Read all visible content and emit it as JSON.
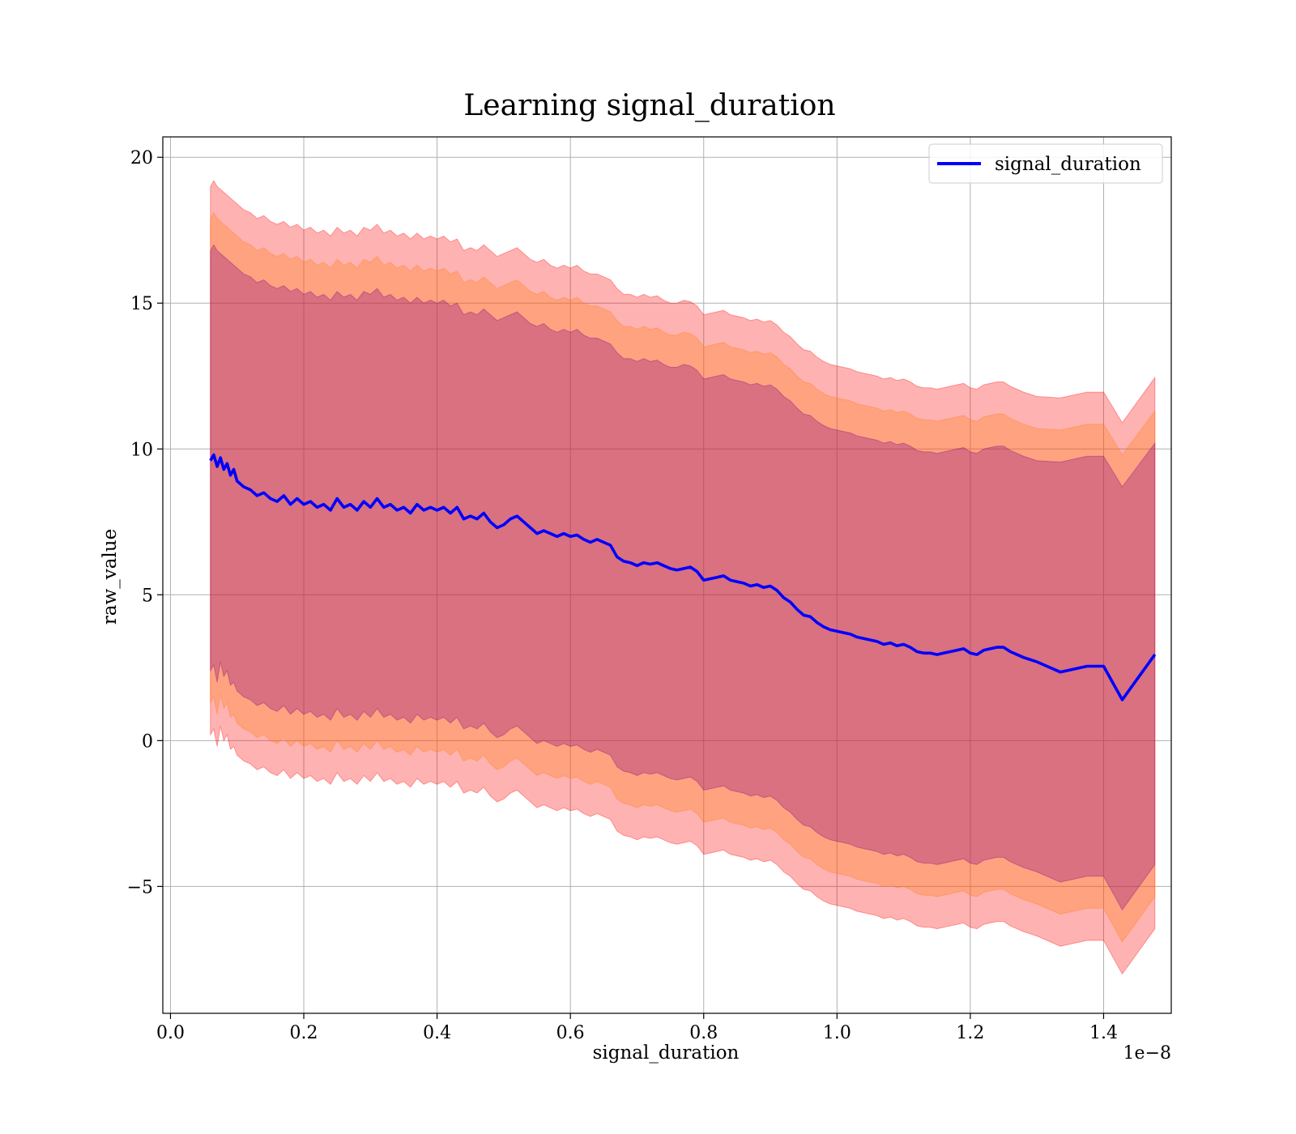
{
  "chart_data": {
    "type": "line",
    "title": "Learning signal_duration",
    "xlabel": "signal_duration",
    "ylabel": "raw_value",
    "x_offset_label": "1e−8",
    "xlim": [
      -0.0115,
      1.5015
    ],
    "ylim": [
      -9.35,
      20.7
    ],
    "x_ticks": [
      0.0,
      0.2,
      0.4,
      0.6,
      0.8,
      1.0,
      1.2,
      1.4
    ],
    "x_tick_labels": [
      "0.0",
      "0.2",
      "0.4",
      "0.6",
      "0.8",
      "1.0",
      "1.2",
      "1.4"
    ],
    "y_ticks": [
      -5,
      0,
      5,
      10,
      15,
      20
    ],
    "y_tick_labels": [
      "−5",
      "0",
      "5",
      "10",
      "15",
      "20"
    ],
    "grid": true,
    "legend": {
      "position": "top-right",
      "entries": [
        "signal_duration"
      ]
    },
    "colors": {
      "line": "#0000ff",
      "band_outer": "#ff0000",
      "band_middle": "#ff7f0e",
      "band_inner": "#800080",
      "grid": "#b0b0b0"
    },
    "series": [
      {
        "name": "signal_duration",
        "x": [
          0.06,
          0.065,
          0.07,
          0.075,
          0.08,
          0.085,
          0.09,
          0.095,
          0.1,
          0.11,
          0.12,
          0.13,
          0.14,
          0.15,
          0.16,
          0.17,
          0.18,
          0.19,
          0.2,
          0.21,
          0.22,
          0.23,
          0.24,
          0.25,
          0.26,
          0.27,
          0.28,
          0.29,
          0.3,
          0.31,
          0.32,
          0.33,
          0.34,
          0.35,
          0.36,
          0.37,
          0.38,
          0.39,
          0.4,
          0.41,
          0.42,
          0.43,
          0.44,
          0.45,
          0.46,
          0.47,
          0.48,
          0.49,
          0.5,
          0.51,
          0.52,
          0.53,
          0.54,
          0.55,
          0.56,
          0.57,
          0.58,
          0.59,
          0.6,
          0.61,
          0.62,
          0.63,
          0.64,
          0.65,
          0.66,
          0.67,
          0.68,
          0.69,
          0.7,
          0.71,
          0.72,
          0.73,
          0.74,
          0.75,
          0.76,
          0.77,
          0.78,
          0.79,
          0.8,
          0.81,
          0.82,
          0.83,
          0.84,
          0.85,
          0.86,
          0.87,
          0.88,
          0.89,
          0.9,
          0.91,
          0.92,
          0.93,
          0.94,
          0.95,
          0.96,
          0.97,
          0.98,
          0.99,
          1.0,
          1.01,
          1.02,
          1.03,
          1.04,
          1.05,
          1.06,
          1.07,
          1.08,
          1.09,
          1.1,
          1.11,
          1.12,
          1.13,
          1.14,
          1.15,
          1.16,
          1.17,
          1.18,
          1.19,
          1.2,
          1.21,
          1.22,
          1.23,
          1.24,
          1.25,
          1.26,
          1.28,
          1.3,
          1.335,
          1.375,
          1.4,
          1.428,
          1.477
        ],
        "y": [
          9.6,
          9.8,
          9.4,
          9.7,
          9.3,
          9.5,
          9.1,
          9.3,
          8.9,
          8.7,
          8.6,
          8.4,
          8.5,
          8.3,
          8.2,
          8.4,
          8.1,
          8.3,
          8.1,
          8.2,
          8.0,
          8.1,
          7.9,
          8.3,
          8.0,
          8.1,
          7.9,
          8.2,
          8.0,
          8.3,
          8.0,
          8.1,
          7.9,
          8.0,
          7.8,
          8.1,
          7.9,
          8.0,
          7.9,
          8.0,
          7.8,
          8.0,
          7.6,
          7.7,
          7.6,
          7.8,
          7.5,
          7.3,
          7.4,
          7.6,
          7.7,
          7.5,
          7.3,
          7.1,
          7.2,
          7.1,
          7.0,
          7.1,
          7.0,
          7.05,
          6.9,
          6.8,
          6.9,
          6.8,
          6.7,
          6.3,
          6.15,
          6.1,
          6.0,
          6.1,
          6.05,
          6.1,
          6.0,
          5.9,
          5.85,
          5.9,
          5.95,
          5.8,
          5.5,
          5.55,
          5.6,
          5.65,
          5.5,
          5.45,
          5.4,
          5.3,
          5.35,
          5.25,
          5.3,
          5.15,
          4.9,
          4.75,
          4.5,
          4.3,
          4.25,
          4.05,
          3.9,
          3.8,
          3.75,
          3.7,
          3.65,
          3.55,
          3.5,
          3.45,
          3.4,
          3.3,
          3.35,
          3.25,
          3.3,
          3.2,
          3.05,
          3.0,
          3.0,
          2.95,
          3.0,
          3.05,
          3.1,
          3.15,
          3.0,
          2.95,
          3.1,
          3.15,
          3.2,
          3.2,
          3.05,
          2.85,
          2.7,
          2.35,
          2.55,
          2.55,
          1.4,
          2.95
        ],
        "band_outer_upper": [
          19.0,
          19.2,
          19.0,
          18.9,
          18.8,
          18.7,
          18.6,
          18.5,
          18.4,
          18.2,
          18.1,
          17.9,
          18.0,
          17.8,
          17.7,
          17.8,
          17.6,
          17.7,
          17.5,
          17.6,
          17.4,
          17.5,
          17.3,
          17.6,
          17.4,
          17.5,
          17.3,
          17.6,
          17.5,
          17.7,
          17.4,
          17.5,
          17.3,
          17.4,
          17.2,
          17.4,
          17.2,
          17.3,
          17.2,
          17.3,
          17.1,
          17.2,
          16.8,
          16.9,
          16.8,
          17.0,
          16.8,
          16.6,
          16.7,
          16.8,
          16.9,
          16.7,
          16.5,
          16.4,
          16.5,
          16.3,
          16.2,
          16.3,
          16.2,
          16.3,
          16.1,
          16.0,
          16.0,
          15.9,
          15.8,
          15.5,
          15.3,
          15.3,
          15.2,
          15.3,
          15.2,
          15.25,
          15.1,
          15.0,
          15.0,
          15.1,
          15.05,
          14.9,
          14.6,
          14.65,
          14.7,
          14.75,
          14.6,
          14.55,
          14.5,
          14.4,
          14.45,
          14.35,
          14.4,
          14.25,
          14.0,
          13.85,
          13.6,
          13.4,
          13.35,
          13.15,
          13.0,
          12.9,
          12.85,
          12.8,
          12.75,
          12.65,
          12.6,
          12.55,
          12.5,
          12.4,
          12.45,
          12.35,
          12.4,
          12.3,
          12.15,
          12.1,
          12.1,
          12.05,
          12.1,
          12.15,
          12.2,
          12.25,
          12.1,
          12.05,
          12.2,
          12.25,
          12.3,
          12.3,
          12.15,
          11.95,
          11.8,
          11.75,
          11.95,
          11.95,
          10.9,
          12.45
        ],
        "band_outer_lower": [
          0.2,
          0.4,
          -0.2,
          0.5,
          0.0,
          0.2,
          -0.3,
          -0.2,
          -0.5,
          -0.7,
          -0.8,
          -1.0,
          -0.9,
          -1.1,
          -1.2,
          -1.0,
          -1.3,
          -1.1,
          -1.3,
          -1.2,
          -1.4,
          -1.3,
          -1.5,
          -1.1,
          -1.4,
          -1.3,
          -1.5,
          -1.2,
          -1.4,
          -1.1,
          -1.4,
          -1.3,
          -1.5,
          -1.4,
          -1.6,
          -1.3,
          -1.5,
          -1.4,
          -1.5,
          -1.4,
          -1.6,
          -1.4,
          -1.8,
          -1.7,
          -1.8,
          -1.6,
          -1.9,
          -2.1,
          -2.0,
          -1.8,
          -1.7,
          -1.9,
          -2.1,
          -2.3,
          -2.2,
          -2.3,
          -2.4,
          -2.3,
          -2.4,
          -2.35,
          -2.5,
          -2.6,
          -2.5,
          -2.6,
          -2.7,
          -3.1,
          -3.25,
          -3.3,
          -3.4,
          -3.3,
          -3.35,
          -3.3,
          -3.4,
          -3.5,
          -3.55,
          -3.5,
          -3.45,
          -3.6,
          -3.9,
          -3.85,
          -3.8,
          -3.75,
          -3.9,
          -3.95,
          -4.0,
          -4.1,
          -4.05,
          -4.15,
          -4.1,
          -4.25,
          -4.5,
          -4.65,
          -4.9,
          -5.1,
          -5.15,
          -5.35,
          -5.5,
          -5.6,
          -5.65,
          -5.7,
          -5.75,
          -5.85,
          -5.9,
          -5.95,
          -6.0,
          -6.1,
          -6.05,
          -6.15,
          -6.1,
          -6.2,
          -6.35,
          -6.4,
          -6.4,
          -6.45,
          -6.4,
          -6.35,
          -6.3,
          -6.25,
          -6.4,
          -6.45,
          -6.3,
          -6.25,
          -6.2,
          -6.2,
          -6.35,
          -6.55,
          -6.7,
          -7.05,
          -6.85,
          -6.85,
          -8.0,
          -6.45
        ],
        "band_middle_upper": [
          17.9,
          18.1,
          17.9,
          17.8,
          17.7,
          17.6,
          17.5,
          17.4,
          17.3,
          17.1,
          17.0,
          16.8,
          16.9,
          16.7,
          16.6,
          16.7,
          16.5,
          16.6,
          16.4,
          16.5,
          16.3,
          16.4,
          16.2,
          16.5,
          16.3,
          16.4,
          16.2,
          16.5,
          16.4,
          16.6,
          16.3,
          16.4,
          16.2,
          16.3,
          16.1,
          16.3,
          16.1,
          16.2,
          16.1,
          16.2,
          16.0,
          16.1,
          15.7,
          15.8,
          15.7,
          15.9,
          15.7,
          15.5,
          15.6,
          15.7,
          15.8,
          15.6,
          15.4,
          15.3,
          15.4,
          15.2,
          15.1,
          15.2,
          15.1,
          15.2,
          15.0,
          14.9,
          14.9,
          14.8,
          14.7,
          14.4,
          14.2,
          14.2,
          14.1,
          14.2,
          14.1,
          14.15,
          14.0,
          13.9,
          13.9,
          14.0,
          13.95,
          13.8,
          13.5,
          13.55,
          13.6,
          13.65,
          13.5,
          13.45,
          13.4,
          13.3,
          13.35,
          13.25,
          13.3,
          13.15,
          12.9,
          12.75,
          12.5,
          12.3,
          12.25,
          12.05,
          11.9,
          11.8,
          11.75,
          11.7,
          11.65,
          11.55,
          11.5,
          11.45,
          11.4,
          11.3,
          11.35,
          11.25,
          11.3,
          11.2,
          11.05,
          11.0,
          11.0,
          10.95,
          11.0,
          11.05,
          11.1,
          11.15,
          11.0,
          10.95,
          11.1,
          11.15,
          11.2,
          11.2,
          11.05,
          10.85,
          10.7,
          10.65,
          10.85,
          10.85,
          9.8,
          11.3
        ],
        "band_middle_lower": [
          1.3,
          1.5,
          0.9,
          1.6,
          1.1,
          1.3,
          0.8,
          0.9,
          0.6,
          0.4,
          0.3,
          0.1,
          0.2,
          0.0,
          -0.1,
          0.1,
          -0.2,
          0.0,
          -0.2,
          -0.1,
          -0.3,
          -0.2,
          -0.4,
          0.0,
          -0.3,
          -0.2,
          -0.4,
          -0.1,
          -0.3,
          0.0,
          -0.3,
          -0.2,
          -0.4,
          -0.3,
          -0.5,
          -0.2,
          -0.4,
          -0.3,
          -0.4,
          -0.3,
          -0.5,
          -0.3,
          -0.7,
          -0.6,
          -0.7,
          -0.5,
          -0.8,
          -1.0,
          -0.9,
          -0.7,
          -0.6,
          -0.8,
          -1.0,
          -1.2,
          -1.1,
          -1.2,
          -1.3,
          -1.2,
          -1.3,
          -1.25,
          -1.4,
          -1.5,
          -1.4,
          -1.5,
          -1.6,
          -2.0,
          -2.15,
          -2.2,
          -2.3,
          -2.2,
          -2.25,
          -2.2,
          -2.3,
          -2.4,
          -2.45,
          -2.4,
          -2.35,
          -2.5,
          -2.8,
          -2.75,
          -2.7,
          -2.65,
          -2.8,
          -2.85,
          -2.9,
          -3.0,
          -2.95,
          -3.05,
          -3.0,
          -3.15,
          -3.4,
          -3.55,
          -3.8,
          -4.0,
          -4.05,
          -4.25,
          -4.4,
          -4.5,
          -4.55,
          -4.6,
          -4.65,
          -4.75,
          -4.8,
          -4.85,
          -4.9,
          -5.0,
          -4.95,
          -5.05,
          -5.0,
          -5.1,
          -5.25,
          -5.3,
          -5.3,
          -5.35,
          -5.3,
          -5.25,
          -5.2,
          -5.15,
          -5.3,
          -5.35,
          -5.2,
          -5.15,
          -5.1,
          -5.1,
          -5.25,
          -5.45,
          -5.6,
          -5.95,
          -5.75,
          -5.75,
          -6.9,
          -5.35
        ],
        "band_inner_upper": [
          16.8,
          17.0,
          16.8,
          16.7,
          16.6,
          16.5,
          16.4,
          16.3,
          16.2,
          16.0,
          15.9,
          15.7,
          15.8,
          15.6,
          15.5,
          15.6,
          15.4,
          15.5,
          15.3,
          15.4,
          15.2,
          15.3,
          15.1,
          15.4,
          15.2,
          15.3,
          15.1,
          15.4,
          15.3,
          15.5,
          15.2,
          15.3,
          15.1,
          15.2,
          15.0,
          15.2,
          15.0,
          15.1,
          15.0,
          15.1,
          14.9,
          15.0,
          14.6,
          14.7,
          14.6,
          14.8,
          14.6,
          14.4,
          14.5,
          14.6,
          14.7,
          14.5,
          14.3,
          14.2,
          14.3,
          14.1,
          14.0,
          14.1,
          14.0,
          14.1,
          13.9,
          13.8,
          13.8,
          13.7,
          13.6,
          13.3,
          13.1,
          13.1,
          13.0,
          13.1,
          13.0,
          13.05,
          12.9,
          12.8,
          12.8,
          12.9,
          12.85,
          12.7,
          12.4,
          12.45,
          12.5,
          12.55,
          12.4,
          12.35,
          12.3,
          12.2,
          12.25,
          12.15,
          12.2,
          12.05,
          11.8,
          11.65,
          11.4,
          11.2,
          11.15,
          10.95,
          10.8,
          10.7,
          10.65,
          10.6,
          10.55,
          10.45,
          10.4,
          10.35,
          10.3,
          10.2,
          10.25,
          10.15,
          10.2,
          10.1,
          9.95,
          9.9,
          9.9,
          9.85,
          9.9,
          9.95,
          10.0,
          10.05,
          9.9,
          9.85,
          10.0,
          10.05,
          10.1,
          10.1,
          9.95,
          9.75,
          9.6,
          9.55,
          9.75,
          9.75,
          8.7,
          10.2
        ],
        "band_inner_lower": [
          2.4,
          2.6,
          2.0,
          2.7,
          2.2,
          2.4,
          1.9,
          2.0,
          1.7,
          1.5,
          1.4,
          1.2,
          1.3,
          1.1,
          1.0,
          1.2,
          0.9,
          1.1,
          0.9,
          1.0,
          0.8,
          0.9,
          0.7,
          1.1,
          0.8,
          0.9,
          0.7,
          1.0,
          0.8,
          1.1,
          0.8,
          0.9,
          0.7,
          0.8,
          0.6,
          0.9,
          0.7,
          0.8,
          0.7,
          0.8,
          0.6,
          0.8,
          0.4,
          0.5,
          0.4,
          0.6,
          0.3,
          0.1,
          0.2,
          0.4,
          0.5,
          0.3,
          0.1,
          -0.1,
          0.0,
          -0.1,
          -0.2,
          -0.1,
          -0.2,
          -0.15,
          -0.3,
          -0.4,
          -0.3,
          -0.4,
          -0.5,
          -0.9,
          -1.05,
          -1.1,
          -1.2,
          -1.1,
          -1.15,
          -1.1,
          -1.2,
          -1.3,
          -1.35,
          -1.3,
          -1.25,
          -1.4,
          -1.7,
          -1.65,
          -1.6,
          -1.55,
          -1.7,
          -1.75,
          -1.8,
          -1.9,
          -1.85,
          -1.95,
          -1.9,
          -2.05,
          -2.3,
          -2.45,
          -2.7,
          -2.9,
          -2.95,
          -3.15,
          -3.3,
          -3.4,
          -3.45,
          -3.5,
          -3.55,
          -3.65,
          -3.7,
          -3.75,
          -3.8,
          -3.9,
          -3.85,
          -3.95,
          -3.9,
          -4.0,
          -4.15,
          -4.2,
          -4.2,
          -4.25,
          -4.2,
          -4.15,
          -4.1,
          -4.05,
          -4.2,
          -4.25,
          -4.1,
          -4.05,
          -4.0,
          -4.0,
          -4.15,
          -4.35,
          -4.5,
          -4.85,
          -4.65,
          -4.65,
          -5.8,
          -4.25
        ]
      }
    ]
  }
}
